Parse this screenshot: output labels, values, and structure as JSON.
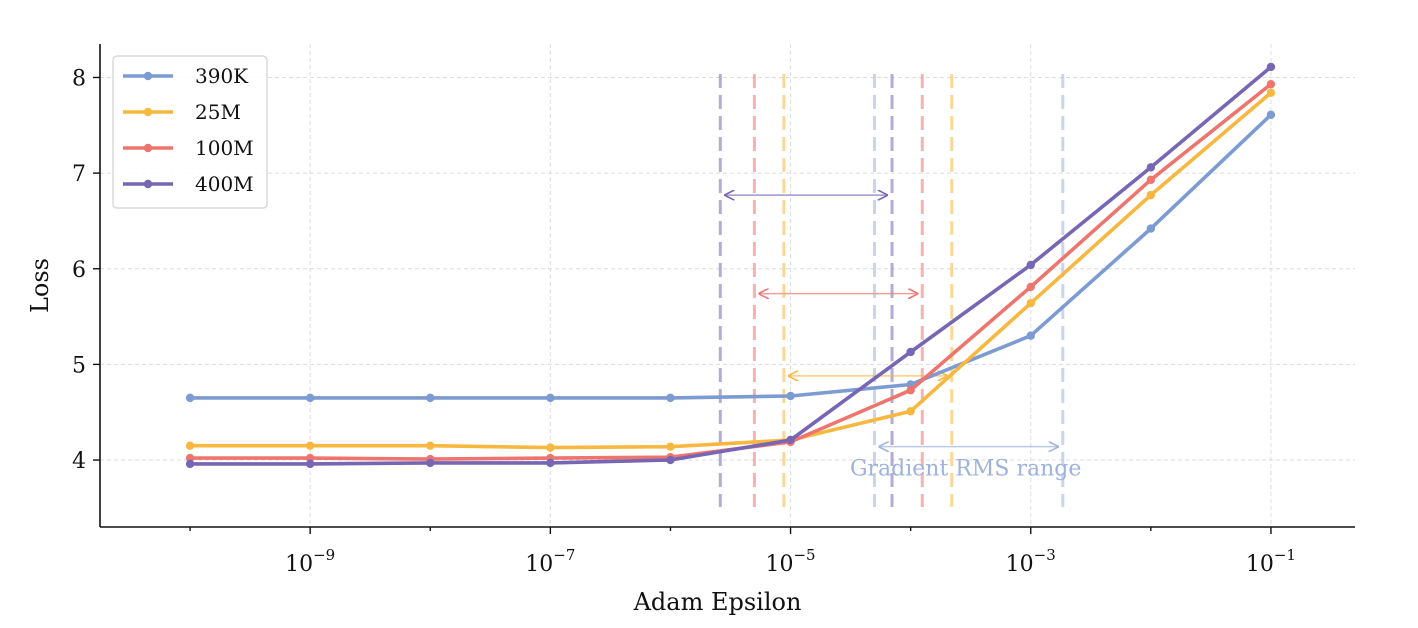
{
  "chart_data": {
    "type": "line",
    "title": "",
    "xlabel": "Adam Epsilon",
    "ylabel": "Loss",
    "xscale": "log",
    "xlim_log10": [
      -10.75,
      -0.3
    ],
    "ylim": [
      3.3,
      8.35
    ],
    "grid": true,
    "legend_position": "top-left",
    "x_ticks": [
      {
        "exp": -9,
        "base": "10",
        "sup": "−9"
      },
      {
        "exp": -7,
        "base": "10",
        "sup": "−7"
      },
      {
        "exp": -5,
        "base": "10",
        "sup": "−5"
      },
      {
        "exp": -3,
        "base": "10",
        "sup": "−3"
      },
      {
        "exp": -1,
        "base": "10",
        "sup": "−1"
      }
    ],
    "y_ticks": [
      4,
      5,
      6,
      7,
      8
    ],
    "x": [
      1e-10,
      1e-09,
      1e-08,
      1e-07,
      1e-06,
      1e-05,
      0.0001,
      0.001,
      0.01,
      0.1
    ],
    "series": [
      {
        "name": "390K",
        "color": "#7b9bd2",
        "values": [
          4.65,
          4.65,
          4.65,
          4.65,
          4.65,
          4.67,
          4.79,
          5.3,
          6.42,
          7.61
        ]
      },
      {
        "name": "25M",
        "color": "#f8b73f",
        "values": [
          4.15,
          4.15,
          4.15,
          4.13,
          4.14,
          4.21,
          4.51,
          5.64,
          6.77,
          7.84
        ]
      },
      {
        "name": "100M",
        "color": "#ee756e",
        "values": [
          4.02,
          4.02,
          4.01,
          4.02,
          4.03,
          4.19,
          4.73,
          5.81,
          6.93,
          7.93
        ]
      },
      {
        "name": "400M",
        "color": "#7766b4",
        "values": [
          3.96,
          3.96,
          3.97,
          3.97,
          4.0,
          4.21,
          5.13,
          6.04,
          7.06,
          8.11
        ]
      }
    ],
    "annotations": {
      "rms_label": "Gradient RMS range",
      "rms_label_color": "#9db3dd",
      "ranges": [
        {
          "series": "400M",
          "color": "#7766b4",
          "low": 2.6e-06,
          "high": 7e-05,
          "arrow_y": 6.77
        },
        {
          "series": "100M",
          "color": "#ee756e",
          "low": 5e-06,
          "high": 0.000125,
          "arrow_y": 5.74
        },
        {
          "series": "25M",
          "color": "#f8b73f",
          "low": 8.8e-06,
          "high": 0.00022,
          "arrow_y": 4.88
        },
        {
          "series": "390K",
          "color": "#9db3dd",
          "low": 5e-05,
          "high": 0.00185,
          "arrow_y": 4.14
        }
      ]
    }
  }
}
